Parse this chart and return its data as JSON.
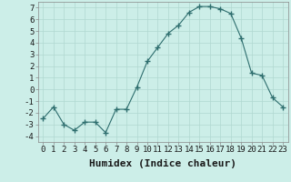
{
  "x": [
    0,
    1,
    2,
    3,
    4,
    5,
    6,
    7,
    8,
    9,
    10,
    11,
    12,
    13,
    14,
    15,
    16,
    17,
    18,
    19,
    20,
    21,
    22,
    23
  ],
  "y": [
    -2.5,
    -1.5,
    -3.0,
    -3.5,
    -2.8,
    -2.8,
    -3.7,
    -1.7,
    -1.7,
    0.2,
    2.4,
    3.6,
    4.8,
    5.5,
    6.6,
    7.1,
    7.1,
    6.9,
    6.5,
    4.4,
    1.4,
    1.2,
    -0.7,
    -1.5
  ],
  "line_color": "#2e6e6e",
  "marker": "+",
  "marker_size": 4,
  "bg_color": "#cceee8",
  "grid_color": "#b0d8d0",
  "xlabel": "Humidex (Indice chaleur)",
  "xlim": [
    -0.5,
    23.5
  ],
  "ylim": [
    -4.5,
    7.5
  ],
  "yticks": [
    -4,
    -3,
    -2,
    -1,
    0,
    1,
    2,
    3,
    4,
    5,
    6,
    7
  ],
  "tick_fontsize": 6.5,
  "xlabel_fontsize": 8
}
